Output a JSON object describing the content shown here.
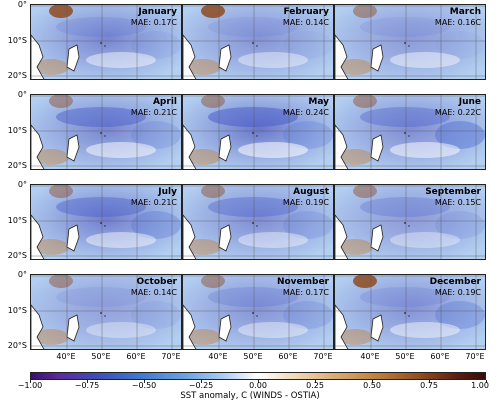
{
  "panels": [
    {
      "month": "January",
      "mae": "MAE: 0.17C",
      "pattern": [
        0.15,
        0.35,
        0.1,
        0.2
      ]
    },
    {
      "month": "February",
      "mae": "MAE: 0.14C",
      "pattern": [
        0.1,
        0.25,
        0.05,
        0.15
      ]
    },
    {
      "month": "March",
      "mae": "MAE: 0.16C",
      "pattern": [
        0.1,
        0.2,
        0.05,
        0.2
      ]
    },
    {
      "month": "April",
      "mae": "MAE: 0.21C",
      "pattern": [
        0.45,
        0.35,
        0.2,
        0.25
      ]
    },
    {
      "month": "May",
      "mae": "MAE: 0.24C",
      "pattern": [
        0.5,
        0.45,
        0.25,
        0.3
      ]
    },
    {
      "month": "June",
      "mae": "MAE: 0.22C",
      "pattern": [
        0.35,
        0.3,
        0.45,
        0.25
      ]
    },
    {
      "month": "July",
      "mae": "MAE: 0.21C",
      "pattern": [
        0.4,
        0.4,
        0.3,
        0.2
      ]
    },
    {
      "month": "August",
      "mae": "MAE: 0.19C",
      "pattern": [
        0.35,
        0.3,
        0.2,
        0.15
      ]
    },
    {
      "month": "September",
      "mae": "MAE: 0.15C",
      "pattern": [
        0.25,
        0.2,
        0.15,
        0.1
      ]
    },
    {
      "month": "October",
      "mae": "MAE: 0.14C",
      "pattern": [
        0.1,
        0.15,
        0.1,
        0.1
      ]
    },
    {
      "month": "November",
      "mae": "MAE: 0.17C",
      "pattern": [
        0.2,
        0.25,
        0.2,
        0.15
      ]
    },
    {
      "month": "December",
      "mae": "MAE: 0.19C",
      "pattern": [
        0.15,
        0.25,
        0.3,
        0.2
      ]
    }
  ],
  "lat_labels": [
    "0°",
    "10°S",
    "20°S"
  ],
  "lon_labels": [
    "40°E",
    "50°E",
    "60°E",
    "70°E"
  ],
  "colorbar": {
    "ticks": [
      "−1.00",
      "−0.75",
      "−0.50",
      "−0.25",
      "0.00",
      "0.25",
      "0.50",
      "0.75",
      "1.00"
    ],
    "label": "SST anomaly, C (WINDS - OSTIA)",
    "min": -1.0,
    "max": 1.0
  },
  "colors": {
    "land_edge": "#222222",
    "cold": "#3f49b8",
    "warm": "#8f4a1f",
    "neutral": "#ffffff"
  }
}
